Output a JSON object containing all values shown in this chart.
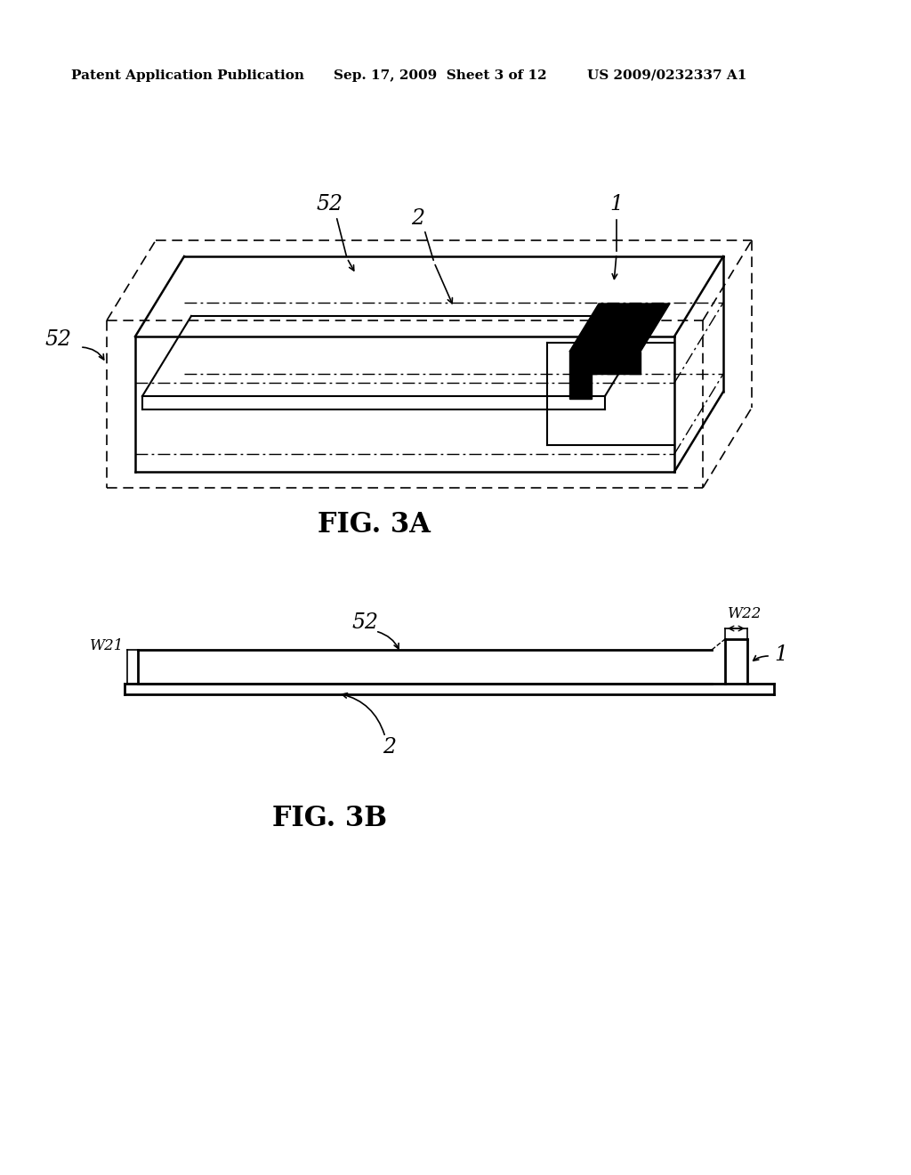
{
  "bg_color": "#ffffff",
  "header_left": "Patent Application Publication",
  "header_mid": "Sep. 17, 2009  Sheet 3 of 12",
  "header_right": "US 2009/0232337 A1",
  "fig3a_label": "FIG. 3A",
  "fig3b_label": "FIG. 3B"
}
